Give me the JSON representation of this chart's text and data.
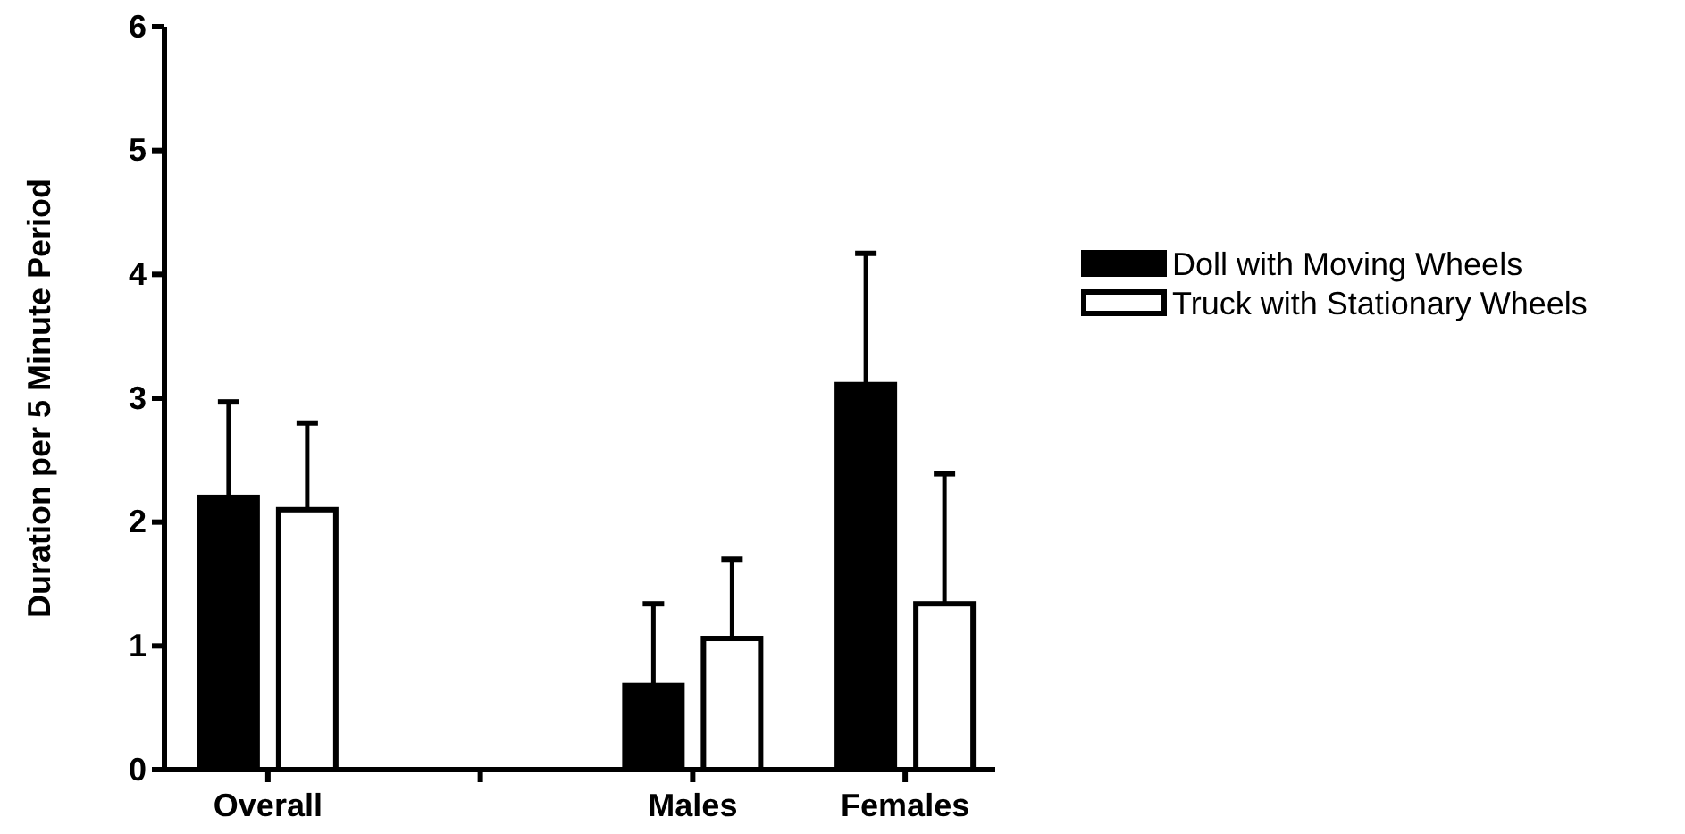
{
  "chart_data": {
    "type": "bar",
    "ylabel": "Duration per 5 Minute Period",
    "categories": [
      "Overall",
      null,
      "Males",
      "Females"
    ],
    "series": [
      {
        "name": "Doll with Moving Wheels",
        "color": "#000000",
        "values": [
          2.2,
          0,
          0.68,
          3.11
        ],
        "errors": [
          [
            2.2,
            2.97
          ],
          null,
          [
            0.68,
            1.34
          ],
          [
            3.11,
            4.17
          ]
        ]
      },
      {
        "name": "Truck with Stationary Wheels",
        "color": "#ffffff",
        "values": [
          2.1,
          0,
          1.06,
          1.34
        ],
        "errors": [
          [
            2.1,
            2.8
          ],
          null,
          [
            1.06,
            1.7
          ],
          [
            1.34,
            2.39
          ]
        ]
      }
    ],
    "ylim": [
      0,
      6
    ],
    "yticks": [
      0,
      1,
      2,
      3,
      4,
      5,
      6
    ],
    "legend": "right"
  }
}
